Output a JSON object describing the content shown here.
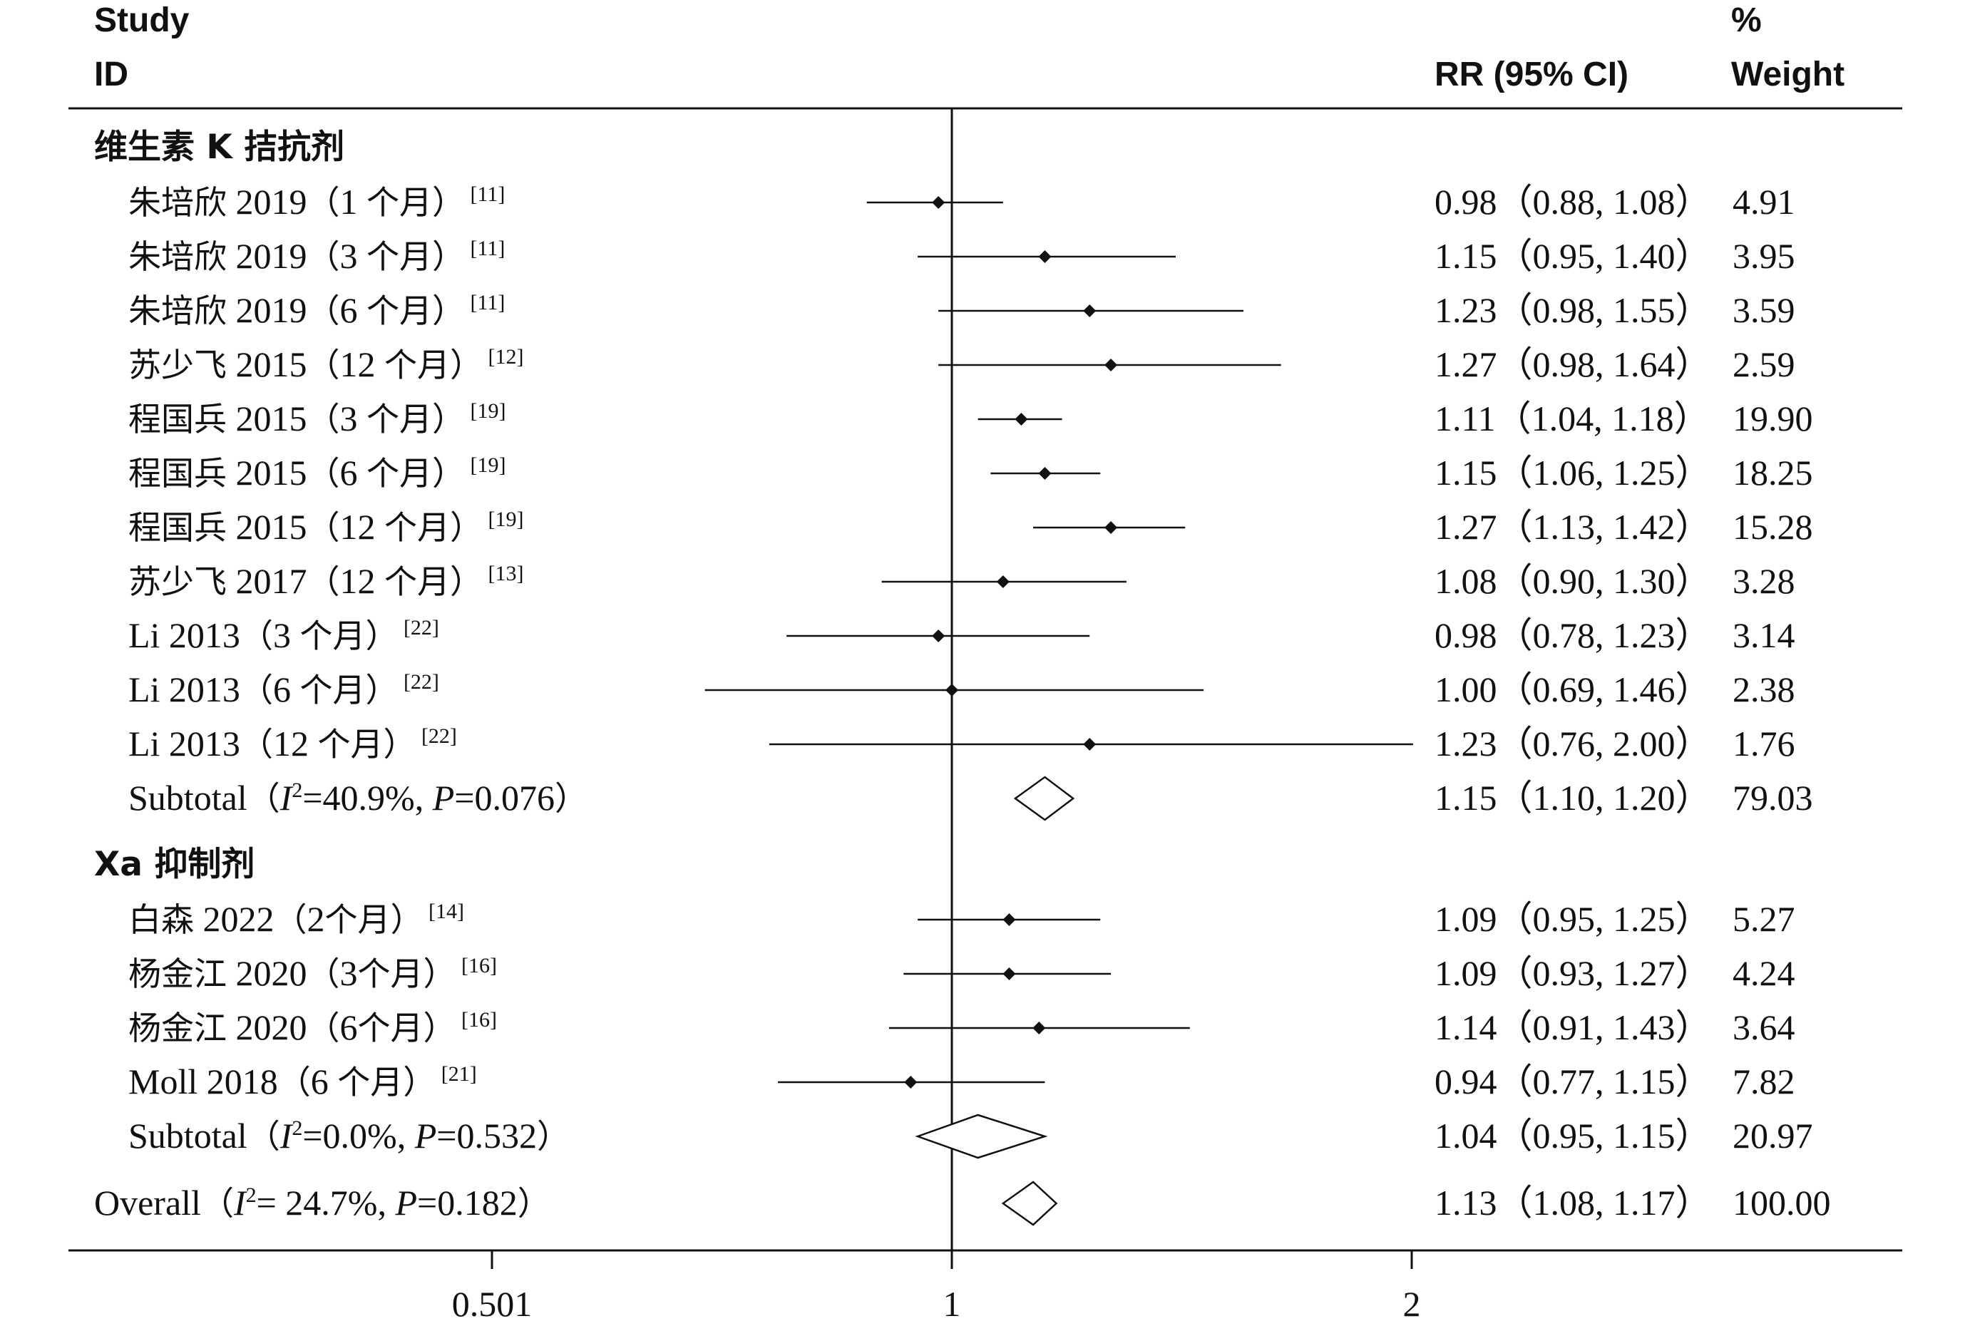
{
  "header": {
    "study": "Study",
    "id": "ID",
    "rr": "RR (95% CI)",
    "pct": "%",
    "weight": "Weight"
  },
  "chart_data": {
    "type": "forest",
    "xscale": "log",
    "xlim": [
      0.501,
      1.996
    ],
    "xticks": [
      {
        "value": 0.501,
        "label": "0.501"
      },
      {
        "value": 1,
        "label": "1"
      },
      {
        "value": 1.996,
        "label": "2"
      }
    ],
    "reference_line": 1,
    "groups": [
      {
        "label": "维生素 K 拮抗剂",
        "studies": [
          {
            "name": "朱培欣 2019",
            "detail": "1 个月",
            "ref": "[11]",
            "rr": 0.98,
            "lo": 0.88,
            "hi": 1.08,
            "text": "0.98（0.88, 1.08）",
            "weight": "4.91"
          },
          {
            "name": "朱培欣 2019",
            "detail": "3 个月",
            "ref": "[11]",
            "rr": 1.15,
            "lo": 0.95,
            "hi": 1.4,
            "text": "1.15（0.95, 1.40）",
            "weight": "3.95"
          },
          {
            "name": "朱培欣 2019",
            "detail": "6 个月",
            "ref": "[11]",
            "rr": 1.23,
            "lo": 0.98,
            "hi": 1.55,
            "text": "1.23（0.98, 1.55）",
            "weight": "3.59"
          },
          {
            "name": "苏少飞 2015",
            "detail": "12 个月",
            "ref": "[12]",
            "rr": 1.27,
            "lo": 0.98,
            "hi": 1.64,
            "text": "1.27（0.98, 1.64）",
            "weight": "2.59"
          },
          {
            "name": "程国兵 2015",
            "detail": "3 个月",
            "ref": "[19]",
            "rr": 1.11,
            "lo": 1.04,
            "hi": 1.18,
            "text": "1.11（1.04, 1.18）",
            "weight": "19.90"
          },
          {
            "name": "程国兵 2015",
            "detail": "6 个月",
            "ref": "[19]",
            "rr": 1.15,
            "lo": 1.06,
            "hi": 1.25,
            "text": "1.15（1.06, 1.25）",
            "weight": "18.25"
          },
          {
            "name": "程国兵 2015",
            "detail": "12 个月",
            "ref": "[19]",
            "rr": 1.27,
            "lo": 1.13,
            "hi": 1.42,
            "text": "1.27（1.13, 1.42）",
            "weight": "15.28"
          },
          {
            "name": "苏少飞 2017",
            "detail": "12 个月",
            "ref": "[13]",
            "rr": 1.08,
            "lo": 0.9,
            "hi": 1.3,
            "text": "1.08（0.90, 1.30）",
            "weight": "3.28"
          },
          {
            "name": "Li 2013",
            "detail": "3 个月",
            "ref": "[22]",
            "rr": 0.98,
            "lo": 0.78,
            "hi": 1.23,
            "text": "0.98（0.78, 1.23）",
            "weight": "3.14"
          },
          {
            "name": "Li 2013",
            "detail": "6 个月",
            "ref": "[22]",
            "rr": 1.0,
            "lo": 0.69,
            "hi": 1.46,
            "text": "1.00（0.69, 1.46）",
            "weight": "2.38"
          },
          {
            "name": "Li 2013",
            "detail": "12 个月",
            "ref": "[22]",
            "rr": 1.23,
            "lo": 0.76,
            "hi": 2.0,
            "text": "1.23（0.76, 2.00）",
            "weight": "1.76"
          }
        ],
        "subtotal": {
          "label_prefix": "Subtotal（",
          "i2": "=40.9%, ",
          "p": "=0.076）",
          "rr": 1.15,
          "lo": 1.1,
          "hi": 1.2,
          "text": "1.15（1.10, 1.20）",
          "weight": "79.03"
        }
      },
      {
        "label": "Xa 抑制剂",
        "studies": [
          {
            "name": "白森 2022",
            "detail": "2个月",
            "ref": "[14]",
            "rr": 1.09,
            "lo": 0.95,
            "hi": 1.25,
            "text": "1.09（0.95, 1.25）",
            "weight": "5.27"
          },
          {
            "name": "杨金江 2020",
            "detail": "3个月",
            "ref": "[16]",
            "rr": 1.09,
            "lo": 0.93,
            "hi": 1.27,
            "text": "1.09（0.93, 1.27）",
            "weight": "4.24"
          },
          {
            "name": "杨金江 2020",
            "detail": "6个月",
            "ref": "[16]",
            "rr": 1.14,
            "lo": 0.91,
            "hi": 1.43,
            "text": "1.14（0.91, 1.43）",
            "weight": "3.64"
          },
          {
            "name": "Moll 2018",
            "detail": "6 个月",
            "ref": "[21]",
            "rr": 0.94,
            "lo": 0.77,
            "hi": 1.15,
            "text": "0.94（0.77, 1.15）",
            "weight": "7.82"
          }
        ],
        "subtotal": {
          "label_prefix": "Subtotal（",
          "i2": "=0.0%, ",
          "p": "=0.532）",
          "rr": 1.04,
          "lo": 0.95,
          "hi": 1.15,
          "text": "1.04（0.95, 1.15）",
          "weight": "20.97"
        }
      }
    ],
    "overall": {
      "label_prefix": "Overall（",
      "i2": "= 24.7%, ",
      "p": "=0.182）",
      "rr": 1.13,
      "lo": 1.08,
      "hi": 1.17,
      "text": "1.13（1.08, 1.17）",
      "weight": "100.00"
    }
  }
}
